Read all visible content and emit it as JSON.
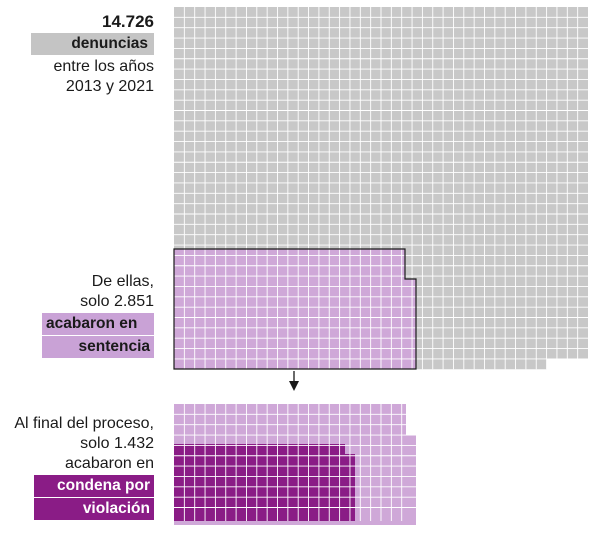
{
  "chart_data": {
    "type": "waffle",
    "title": "",
    "unit_note": "",
    "total": {
      "value": "14.726",
      "highlight": "denuncias",
      "lines": [
        "entre los años",
        "2013 y 2021"
      ],
      "count": 14726,
      "color": "#c8c8c8"
    },
    "sentencia": {
      "lines": [
        "De ellas,",
        "solo 2.851"
      ],
      "highlight_lines": [
        "acabaron en",
        "sentencia"
      ],
      "count": 2851,
      "color": "#cfa8d8"
    },
    "condena": {
      "lines": [
        "Al final del proceso,",
        "solo 1.432",
        "acabaron en"
      ],
      "highlight_lines": [
        "condena por",
        "violación"
      ],
      "count": 1432,
      "color": "#8a1c86"
    },
    "colors": {
      "grid_line": "#ffffff",
      "outline": "#1a1a1a",
      "sentencia_highlight": "#c9a2d6",
      "condena_highlight": "#8a1c86",
      "total_highlight": "#c4c4c4"
    }
  }
}
